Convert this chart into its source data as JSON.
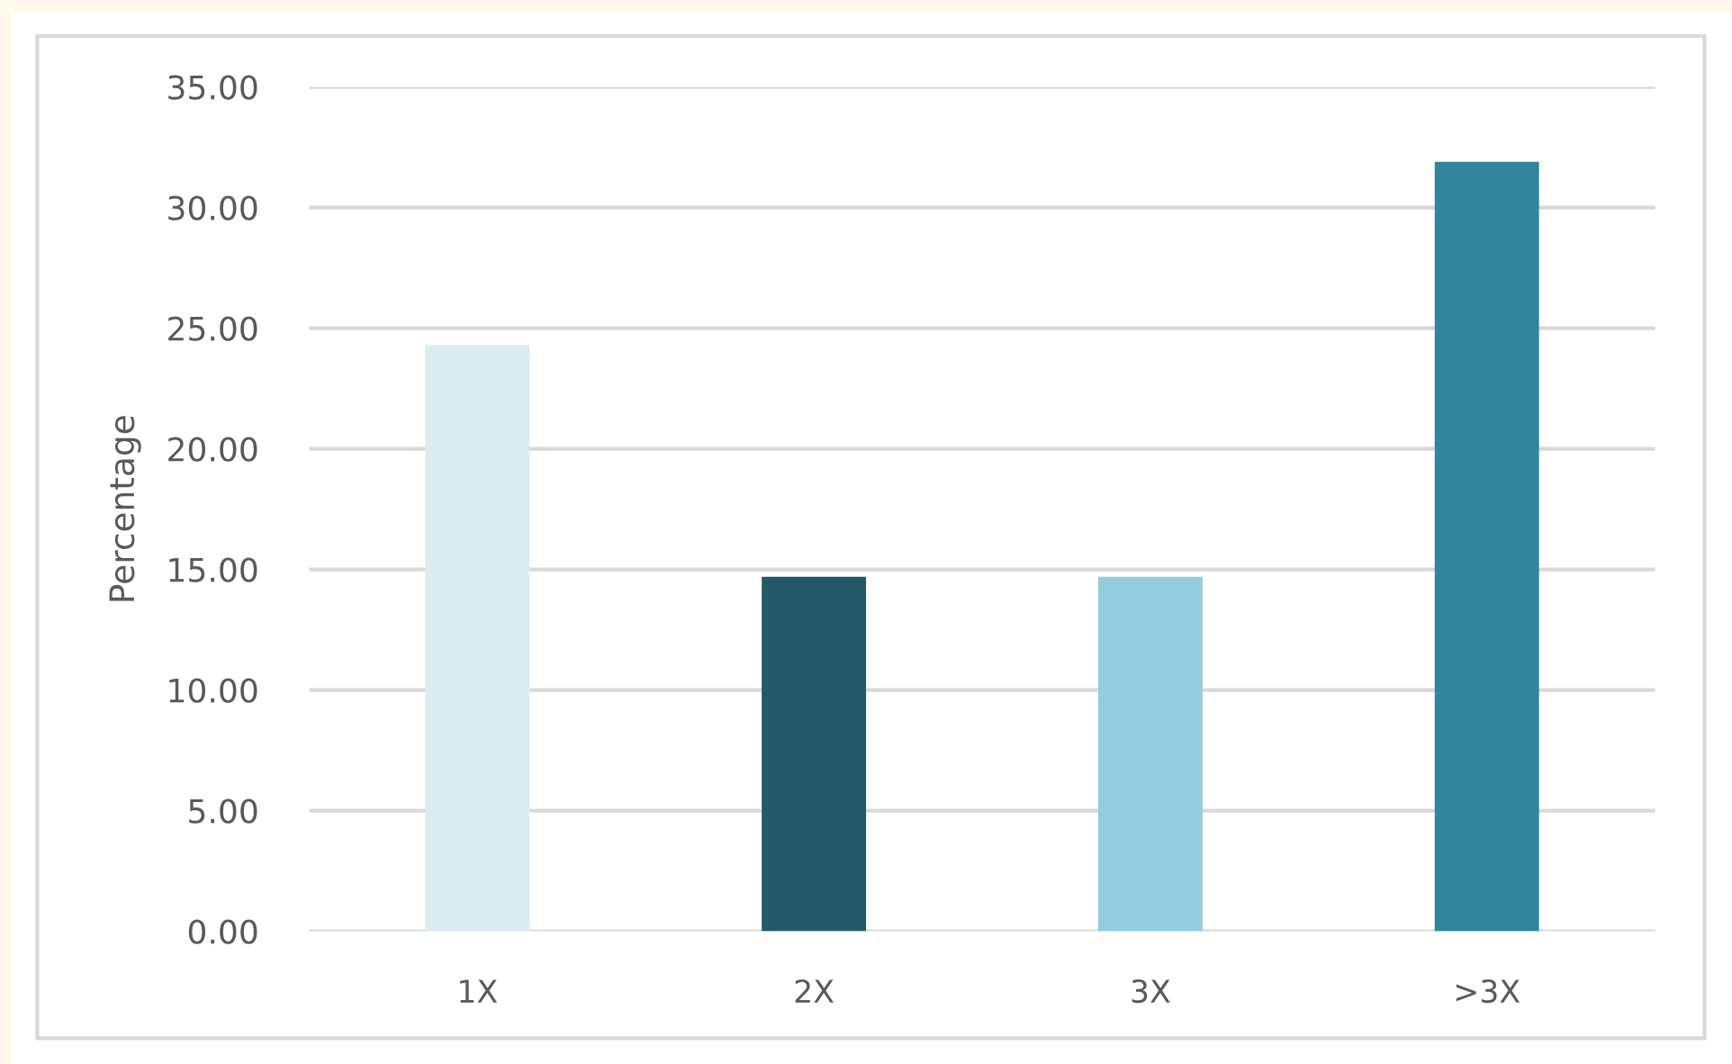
{
  "chart_data": {
    "type": "bar",
    "ylabel": "Percentage",
    "categories": [
      "1X",
      "2X",
      "3X",
      ">3X"
    ],
    "values": [
      24.3,
      14.7,
      14.7,
      31.9
    ],
    "colors": [
      "#daecf2",
      "#215968",
      "#93cddd",
      "#31859c"
    ],
    "ylim": [
      0,
      35
    ],
    "yticks": [
      {
        "value": 0,
        "label": "0.00"
      },
      {
        "value": 5,
        "label": "5.00"
      },
      {
        "value": 10,
        "label": "10.00"
      },
      {
        "value": 15,
        "label": "15.00"
      },
      {
        "value": 20,
        "label": "20.00"
      },
      {
        "value": 25,
        "label": "25.00"
      },
      {
        "value": 30,
        "label": "30.00"
      },
      {
        "value": 35,
        "label": "35.00"
      }
    ],
    "grid": "y"
  }
}
